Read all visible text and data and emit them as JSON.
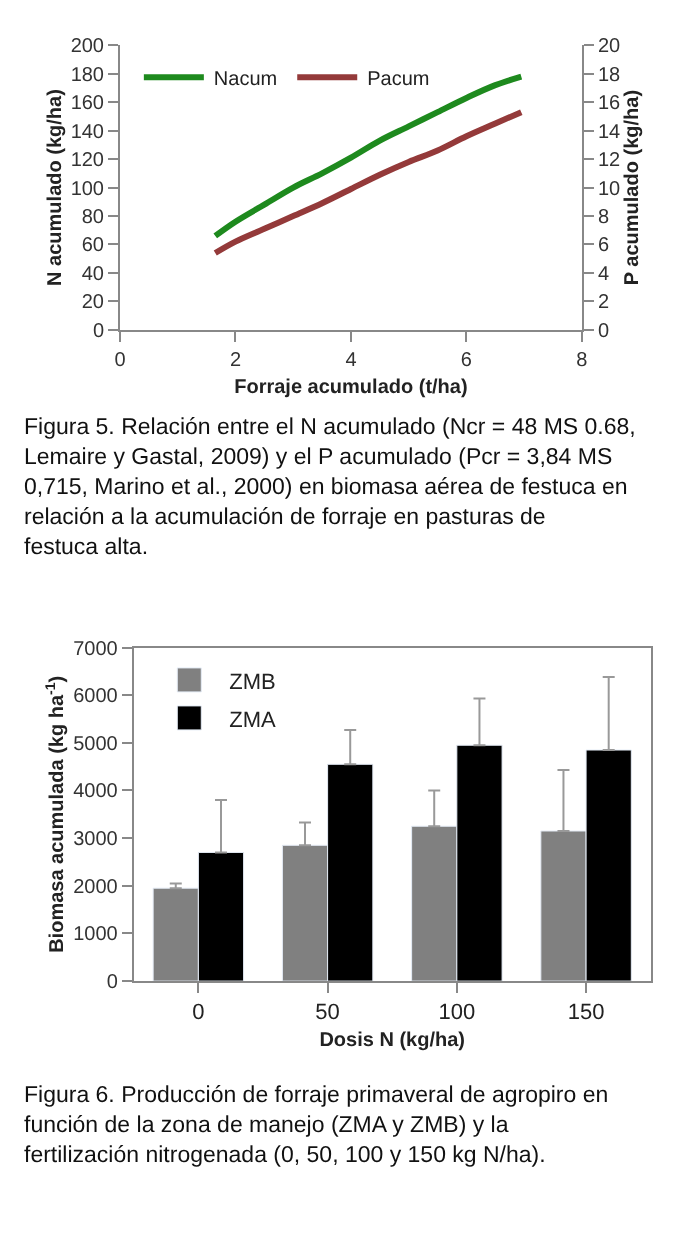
{
  "chart_data": [
    {
      "type": "line",
      "xlabel": "Forraje acumulado (t/ha)",
      "ylabel": "N acumulado (kg/ha)",
      "y2label": "P acumulado (kg/ha)",
      "x": [
        1.65,
        2,
        2.5,
        3,
        3.5,
        4,
        4.5,
        5,
        5.5,
        6,
        6.5,
        6.95
      ],
      "series": [
        {
          "name": "Nacum",
          "color": "#1e8a1e",
          "values": [
            66,
            76,
            88,
            100,
            110,
            121,
            133,
            143,
            153,
            163,
            172,
            178
          ]
        },
        {
          "name": "Pacum",
          "color": "#943a3a",
          "axis": "y2",
          "values": [
            5.4,
            6.2,
            7.1,
            8.0,
            8.9,
            9.9,
            10.9,
            11.8,
            12.6,
            13.6,
            14.5,
            15.3
          ]
        }
      ],
      "xlim": [
        0,
        8
      ],
      "xticks": [
        0,
        2,
        4,
        6,
        8
      ],
      "ylim": [
        0,
        200
      ],
      "yticks": [
        0,
        20,
        40,
        60,
        80,
        100,
        120,
        140,
        160,
        180,
        200
      ],
      "y2lim": [
        0,
        20
      ],
      "y2ticks": [
        0,
        2,
        4,
        6,
        8,
        10,
        12,
        14,
        16,
        18,
        20
      ],
      "legend": "top left",
      "annotations": [
        "Figura 5. Relación entre el N acumulado (Ncr = 48 MS 0.68, Lemaire y Gastal, 2009) y el P acumulado (Pcr = 3,84 MS 0,715, Marino et al., 2000) en biomasa aérea de festuca en relación a la acumulación de forraje en pasturas de festuca alta."
      ]
    },
    {
      "type": "bar",
      "xlabel": "Dosis N (kg/ha)",
      "ylabel": "Biomasa acumulada (kg ha$^{-1}$)",
      "categories": [
        "0",
        "50",
        "100",
        "150"
      ],
      "series": [
        {
          "name": "ZMB",
          "color": "#808080",
          "values": [
            1950,
            2850,
            3250,
            3150
          ],
          "errors": [
            [
              1950,
              2050
            ],
            [
              2850,
              3330
            ],
            [
              3250,
              4000
            ],
            [
              3150,
              4430
            ]
          ]
        },
        {
          "name": "ZMA",
          "color": "#000000",
          "values": [
            2700,
            4550,
            4950,
            4850
          ],
          "errors": [
            [
              2700,
              3800
            ],
            [
              4550,
              5270
            ],
            [
              4950,
              5930
            ],
            [
              4850,
              6380
            ]
          ]
        }
      ],
      "ylim": [
        0,
        7000
      ],
      "yticks": [
        0,
        1000,
        2000,
        3000,
        4000,
        5000,
        6000,
        7000
      ],
      "legend": "top left",
      "annotations": [
        "Figura 6. Producción de forraje primaveral de agropiro en función de la zona de manejo (ZMA y ZMB) y la fertilización nitrogenada (0, 50, 100 y 150 kg N/ha)."
      ]
    }
  ]
}
